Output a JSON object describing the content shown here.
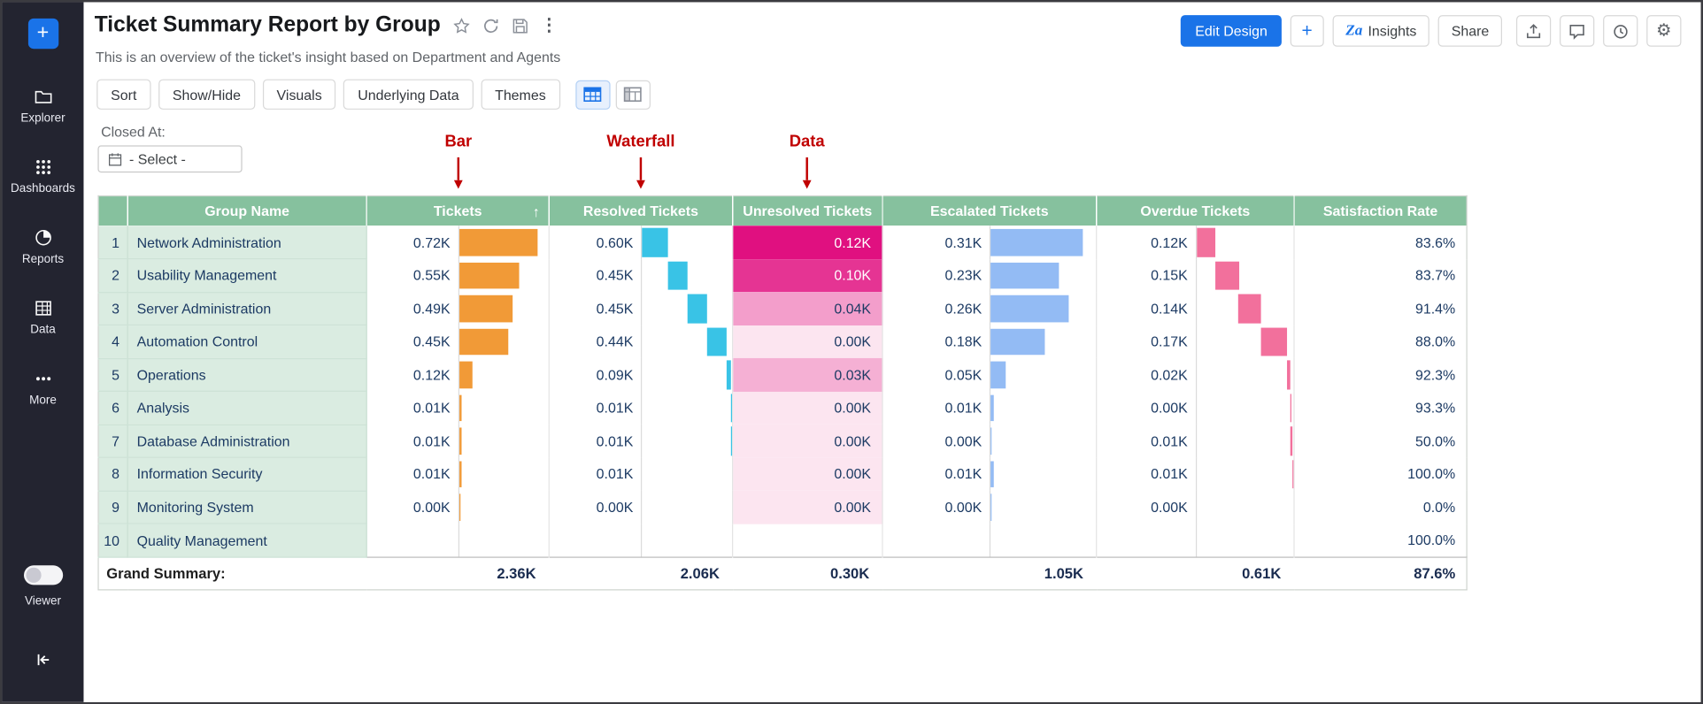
{
  "sidebar": {
    "add_button": "+",
    "items": [
      {
        "id": "explorer",
        "label": "Explorer",
        "icon": "folder-icon"
      },
      {
        "id": "dashboards",
        "label": "Dashboards",
        "icon": "grid-dots-icon"
      },
      {
        "id": "reports",
        "label": "Reports",
        "icon": "pie-chart-icon"
      },
      {
        "id": "data",
        "label": "Data",
        "icon": "table-icon"
      },
      {
        "id": "more",
        "label": "More",
        "icon": "ellipsis-icon"
      }
    ],
    "viewer_label": "Viewer"
  },
  "header": {
    "title": "Ticket Summary Report by Group",
    "subtitle": "This is an overview of the ticket's insight based on Department and Agents"
  },
  "top_actions": {
    "edit_design": "Edit Design",
    "add": "+",
    "insights": "Insights",
    "share": "Share"
  },
  "toolbar": {
    "buttons": [
      "Sort",
      "Show/Hide",
      "Visuals",
      "Underlying Data",
      "Themes"
    ]
  },
  "filter": {
    "label": "Closed At:",
    "value": "- Select -"
  },
  "annotations": [
    {
      "label": "Bar"
    },
    {
      "label": "Waterfall"
    },
    {
      "label": "Data"
    }
  ],
  "colors": {
    "accent_blue": "#1a73e8",
    "header_green": "#86c19e",
    "row_green": "#daece1",
    "annotation_red": "#c00000",
    "bar_orange": "#f19a37",
    "waterfall_cyan": "#39c3e6",
    "data_pink_dark": "#e01080",
    "data_pink_light": "#fce5f0",
    "bar_blue": "#93bbf4",
    "waterfall_pink": "#f2709c"
  },
  "table": {
    "columns": [
      "Group Name",
      "Tickets",
      "Resolved Tickets",
      "Unresolved Tickets",
      "Escalated Tickets",
      "Overdue Tickets",
      "Satisfaction Rate"
    ],
    "sorted_column": "Tickets",
    "rows": [
      {
        "group": "Network Administration",
        "tickets": "0.72K",
        "resolved": "0.60K",
        "unresolved": "0.12K",
        "escalated": "0.31K",
        "overdue": "0.12K",
        "satisfaction": "83.6%"
      },
      {
        "group": "Usability Management",
        "tickets": "0.55K",
        "resolved": "0.45K",
        "unresolved": "0.10K",
        "escalated": "0.23K",
        "overdue": "0.15K",
        "satisfaction": "83.7%"
      },
      {
        "group": "Server Administration",
        "tickets": "0.49K",
        "resolved": "0.45K",
        "unresolved": "0.04K",
        "escalated": "0.26K",
        "overdue": "0.14K",
        "satisfaction": "91.4%"
      },
      {
        "group": "Automation Control",
        "tickets": "0.45K",
        "resolved": "0.44K",
        "unresolved": "0.00K",
        "escalated": "0.18K",
        "overdue": "0.17K",
        "satisfaction": "88.0%"
      },
      {
        "group": "Operations",
        "tickets": "0.12K",
        "resolved": "0.09K",
        "unresolved": "0.03K",
        "escalated": "0.05K",
        "overdue": "0.02K",
        "satisfaction": "92.3%"
      },
      {
        "group": "Analysis",
        "tickets": "0.01K",
        "resolved": "0.01K",
        "unresolved": "0.00K",
        "escalated": "0.01K",
        "overdue": "0.00K",
        "satisfaction": "93.3%"
      },
      {
        "group": "Database Administration",
        "tickets": "0.01K",
        "resolved": "0.01K",
        "unresolved": "0.00K",
        "escalated": "0.00K",
        "overdue": "0.01K",
        "satisfaction": "50.0%"
      },
      {
        "group": "Information Security",
        "tickets": "0.01K",
        "resolved": "0.01K",
        "unresolved": "0.00K",
        "escalated": "0.01K",
        "overdue": "0.01K",
        "satisfaction": "100.0%"
      },
      {
        "group": "Monitoring System",
        "tickets": "0.00K",
        "resolved": "0.00K",
        "unresolved": "0.00K",
        "escalated": "0.00K",
        "overdue": "0.00K",
        "satisfaction": "0.0%"
      },
      {
        "group": "Quality Management",
        "tickets": "",
        "resolved": "",
        "unresolved": "",
        "escalated": "",
        "overdue": "",
        "satisfaction": "100.0%"
      }
    ],
    "summary": {
      "label": "Grand Summary:",
      "tickets": "2.36K",
      "resolved": "2.06K",
      "unresolved": "0.30K",
      "escalated": "1.05K",
      "overdue": "0.61K",
      "satisfaction": "87.6%"
    }
  }
}
